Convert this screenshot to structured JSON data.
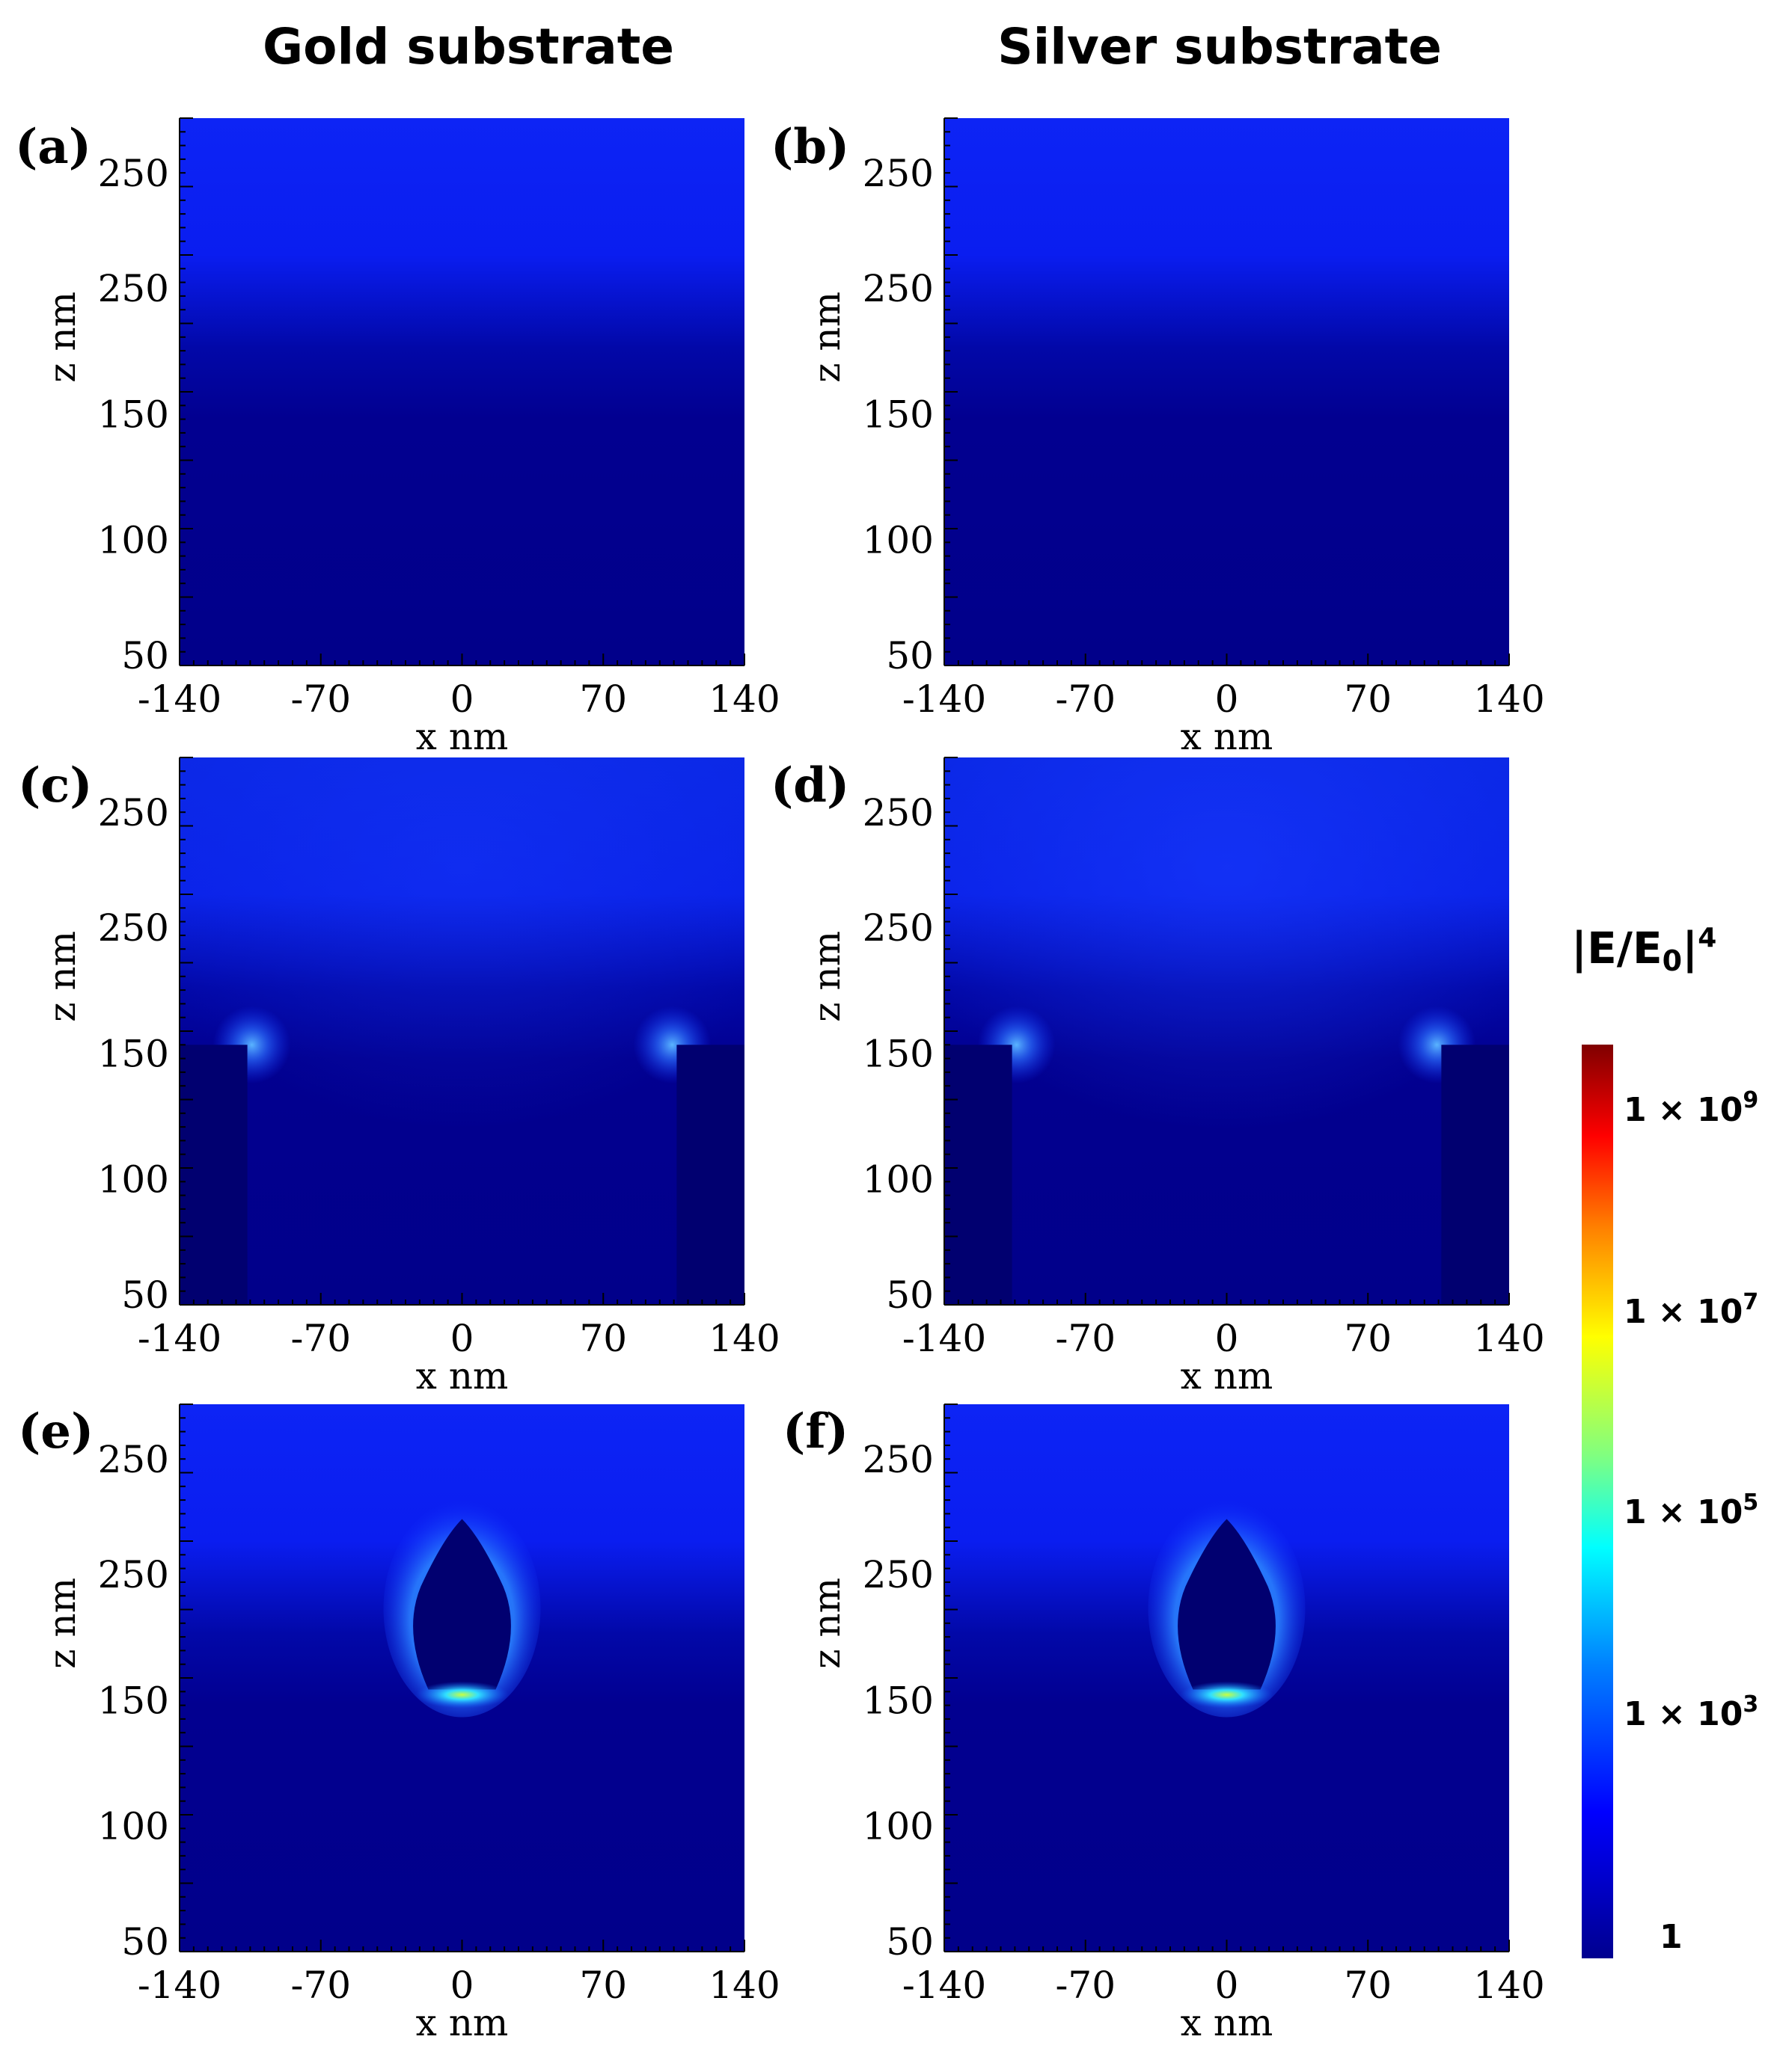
{
  "columns": [
    "Gold substrate",
    "Silver substrate"
  ],
  "colorbar": {
    "title_main": "|E/E",
    "title_sub": "0",
    "title_end": "|",
    "title_sup": "4",
    "ticks": [
      {
        "prefix": "1 × 10",
        "exp": "9",
        "value": 1000000000
      },
      {
        "prefix": "1 × 10",
        "exp": "7",
        "value": 10000000
      },
      {
        "prefix": "1 × 10",
        "exp": "5",
        "value": 100000
      },
      {
        "prefix": "1 × 10",
        "exp": "3",
        "value": 1000
      },
      {
        "prefix": "1",
        "exp": "",
        "value": 1
      }
    ],
    "scale": "log",
    "colormap": "jet"
  },
  "chart_data": [
    {
      "label": "(a)",
      "substrate": "Gold substrate",
      "type": "heatmap",
      "structure": "plain",
      "xlabel": "x nm",
      "ylabel": "z nm",
      "xticks": [
        "-140",
        "-70",
        "0",
        "70",
        "140"
      ],
      "yticks": [
        "50",
        "100",
        "150",
        "250",
        "250"
      ],
      "xlim": [
        -140,
        140
      ]
    },
    {
      "label": "(b)",
      "substrate": "Silver substrate",
      "type": "heatmap",
      "structure": "plain",
      "xlabel": "x nm",
      "ylabel": "z nm",
      "xticks": [
        "-140",
        "-70",
        "0",
        "70",
        "140"
      ],
      "yticks": [
        "50",
        "100",
        "150",
        "250",
        "250"
      ],
      "xlim": [
        -140,
        140
      ]
    },
    {
      "label": "(c)",
      "substrate": "Gold substrate",
      "type": "heatmap",
      "structure": "pillars",
      "xlabel": "x nm",
      "ylabel": "z nm",
      "xticks": [
        "-140",
        "-70",
        "0",
        "70",
        "140"
      ],
      "yticks": [
        "50",
        "100",
        "150",
        "250",
        "250"
      ],
      "xlim": [
        -140,
        140
      ]
    },
    {
      "label": "(d)",
      "substrate": "Silver substrate",
      "type": "heatmap",
      "structure": "pillars",
      "xlabel": "x nm",
      "ylabel": "z nm",
      "xticks": [
        "-140",
        "-70",
        "0",
        "70",
        "140"
      ],
      "yticks": [
        "50",
        "100",
        "150",
        "250",
        "250"
      ],
      "xlim": [
        -140,
        140
      ]
    },
    {
      "label": "(e)",
      "substrate": "Gold substrate",
      "type": "heatmap",
      "structure": "particle",
      "xlabel": "x nm",
      "ylabel": "z nm",
      "xticks": [
        "-140",
        "-70",
        "0",
        "70",
        "140"
      ],
      "yticks": [
        "50",
        "100",
        "150",
        "250",
        "250"
      ],
      "xlim": [
        -140,
        140
      ]
    },
    {
      "label": "(f)",
      "substrate": "Silver substrate",
      "type": "heatmap",
      "structure": "particle",
      "xlabel": "x nm",
      "ylabel": "z nm",
      "xticks": [
        "-140",
        "-70",
        "0",
        "70",
        "140"
      ],
      "yticks": [
        "50",
        "100",
        "150",
        "250",
        "250"
      ],
      "xlim": [
        -140,
        140
      ]
    }
  ]
}
